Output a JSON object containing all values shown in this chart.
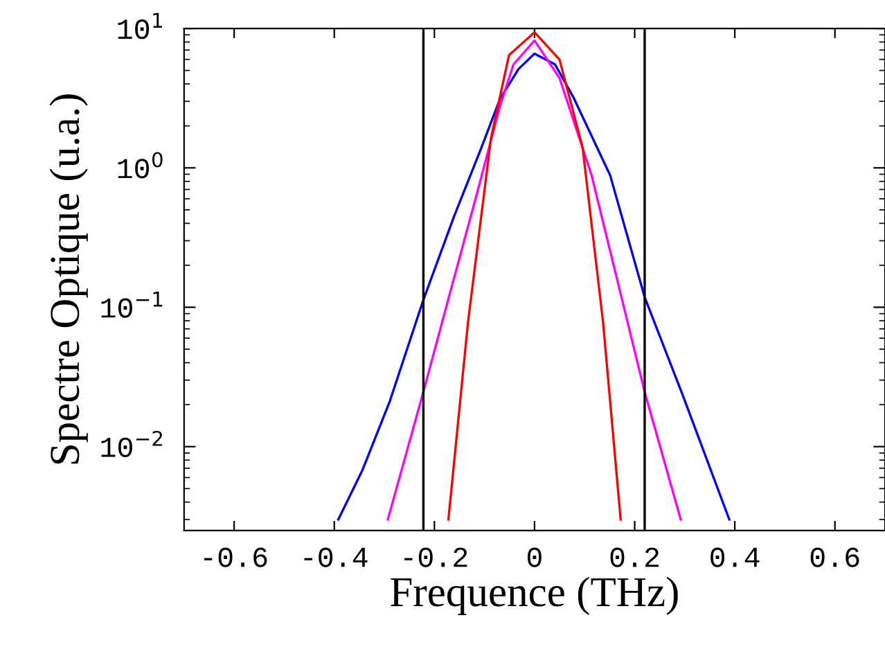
{
  "chart_data": {
    "type": "line",
    "xlabel": "Frequence (THz)",
    "ylabel": "Spectre Optique (u.a.)",
    "log": "y",
    "grid": false,
    "legend": false,
    "xlim": [
      -0.7,
      0.7
    ],
    "xticks": [
      -0.6,
      -0.4,
      -0.2,
      0,
      0.2,
      0.4,
      0.6
    ],
    "ylim": [
      0.0025,
      10
    ],
    "yticks": [
      {
        "value": 0.01,
        "label": "10$^{−2}$"
      },
      {
        "value": 0.1,
        "label": "10$^{−1}$"
      },
      {
        "value": 1,
        "label": "10$^{0}$"
      },
      {
        "value": 10,
        "label": "10$^{1}$"
      }
    ],
    "ref_lines": [
      {
        "axis": "x",
        "value": -0.222,
        "color": "#000000"
      },
      {
        "axis": "x",
        "value": 0.22,
        "color": "#000000"
      }
    ],
    "series": [
      {
        "color": "#0000ff",
        "x": [
          -0.392,
          -0.344,
          -0.289,
          -0.222,
          -0.161,
          -0.106,
          -0.069,
          -0.032,
          0,
          0.041,
          0.077,
          0.151,
          0.22,
          0.297,
          0.389
        ],
        "values": [
          0.003,
          0.00675,
          0.0212,
          0.113,
          0.446,
          1.4,
          3.12,
          5.12,
          6.6,
          5.52,
          3.24,
          0.885,
          0.118,
          0.0229,
          0.003
        ]
      },
      {
        "color": "#ff00ff",
        "x": [
          -0.293,
          -0.222,
          -0.17,
          -0.115,
          -0.069,
          -0.042,
          0,
          0.05,
          0.114,
          0.22,
          0.292
        ],
        "values": [
          0.003,
          0.0247,
          0.122,
          0.653,
          2.78,
          5.52,
          8.2,
          4.4,
          0.885,
          0.0247,
          0.003
        ]
      },
      {
        "color": "#ff0000",
        "x": [
          -0.172,
          -0.133,
          -0.087,
          -0.051,
          0,
          0.05,
          0.096,
          0.137,
          0.172
        ],
        "values": [
          0.003,
          0.0774,
          1.63,
          6.43,
          9.4,
          5.97,
          1.4,
          0.0774,
          0.003
        ]
      }
    ]
  }
}
